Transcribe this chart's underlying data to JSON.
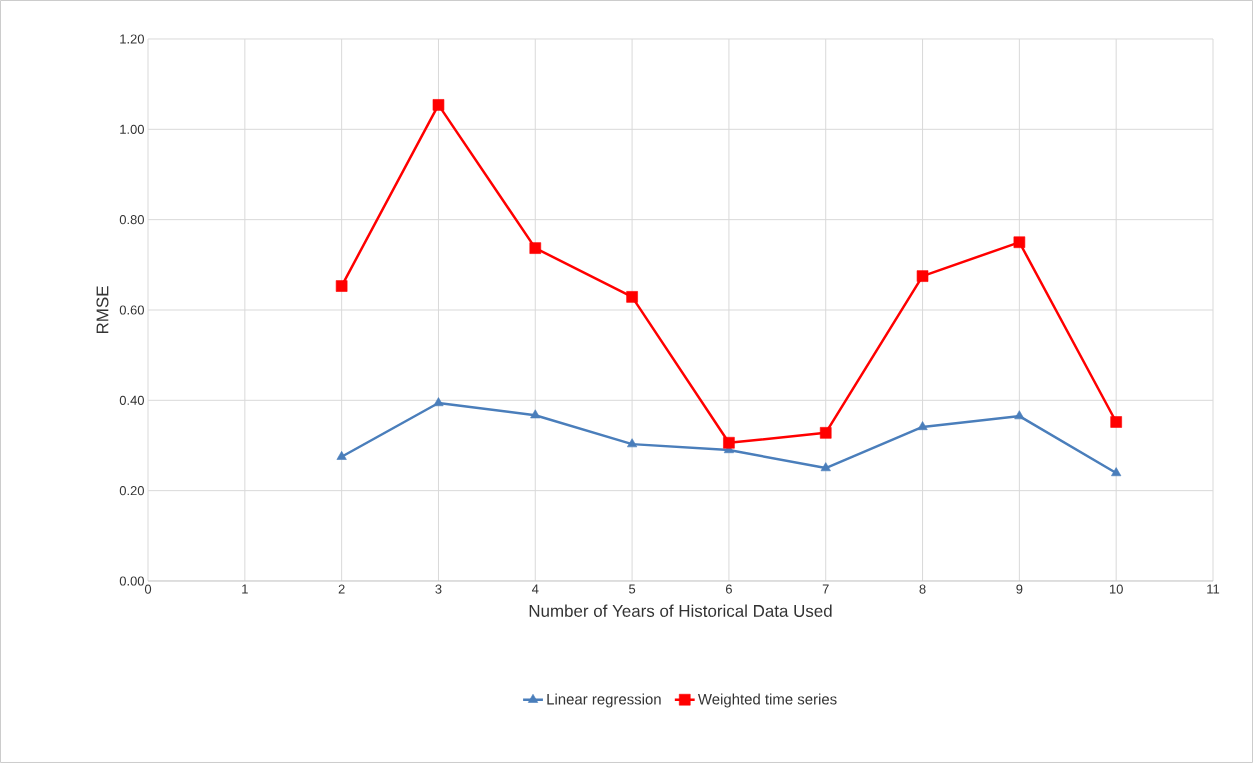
{
  "chart_data": {
    "type": "line",
    "xlabel": "Number of Years of Historical Data Used",
    "ylabel": "RMSE",
    "x": [
      2,
      3,
      4,
      5,
      6,
      7,
      8,
      9,
      10
    ],
    "series": [
      {
        "name": "Linear regression",
        "color": "#4a7ebb",
        "marker": "triangle",
        "values": [
          0.275,
          0.394,
          0.367,
          0.303,
          0.29,
          0.25,
          0.341,
          0.365,
          0.239
        ]
      },
      {
        "name": "Weighted time series",
        "color": "#ff0000",
        "marker": "square",
        "values": [
          0.653,
          1.054,
          0.737,
          0.629,
          0.306,
          0.328,
          0.675,
          0.75,
          0.352
        ]
      }
    ],
    "xlim": [
      0,
      11
    ],
    "xticks": [
      0,
      1,
      2,
      3,
      4,
      5,
      6,
      7,
      8,
      9,
      10,
      11
    ],
    "ylim": [
      0,
      1.2
    ],
    "yticks": [
      {
        "value": 0,
        "label": "0.00"
      },
      {
        "value": 0.2,
        "label": "0.20"
      },
      {
        "value": 0.4,
        "label": "0.40"
      },
      {
        "value": 0.6,
        "label": "0.60"
      },
      {
        "value": 0.8,
        "label": "0.80"
      },
      {
        "value": 1.0,
        "label": "1.00"
      },
      {
        "value": 1.2,
        "label": "1.20"
      }
    ],
    "grid": true,
    "legend": "bottom",
    "line_style": "solid"
  }
}
